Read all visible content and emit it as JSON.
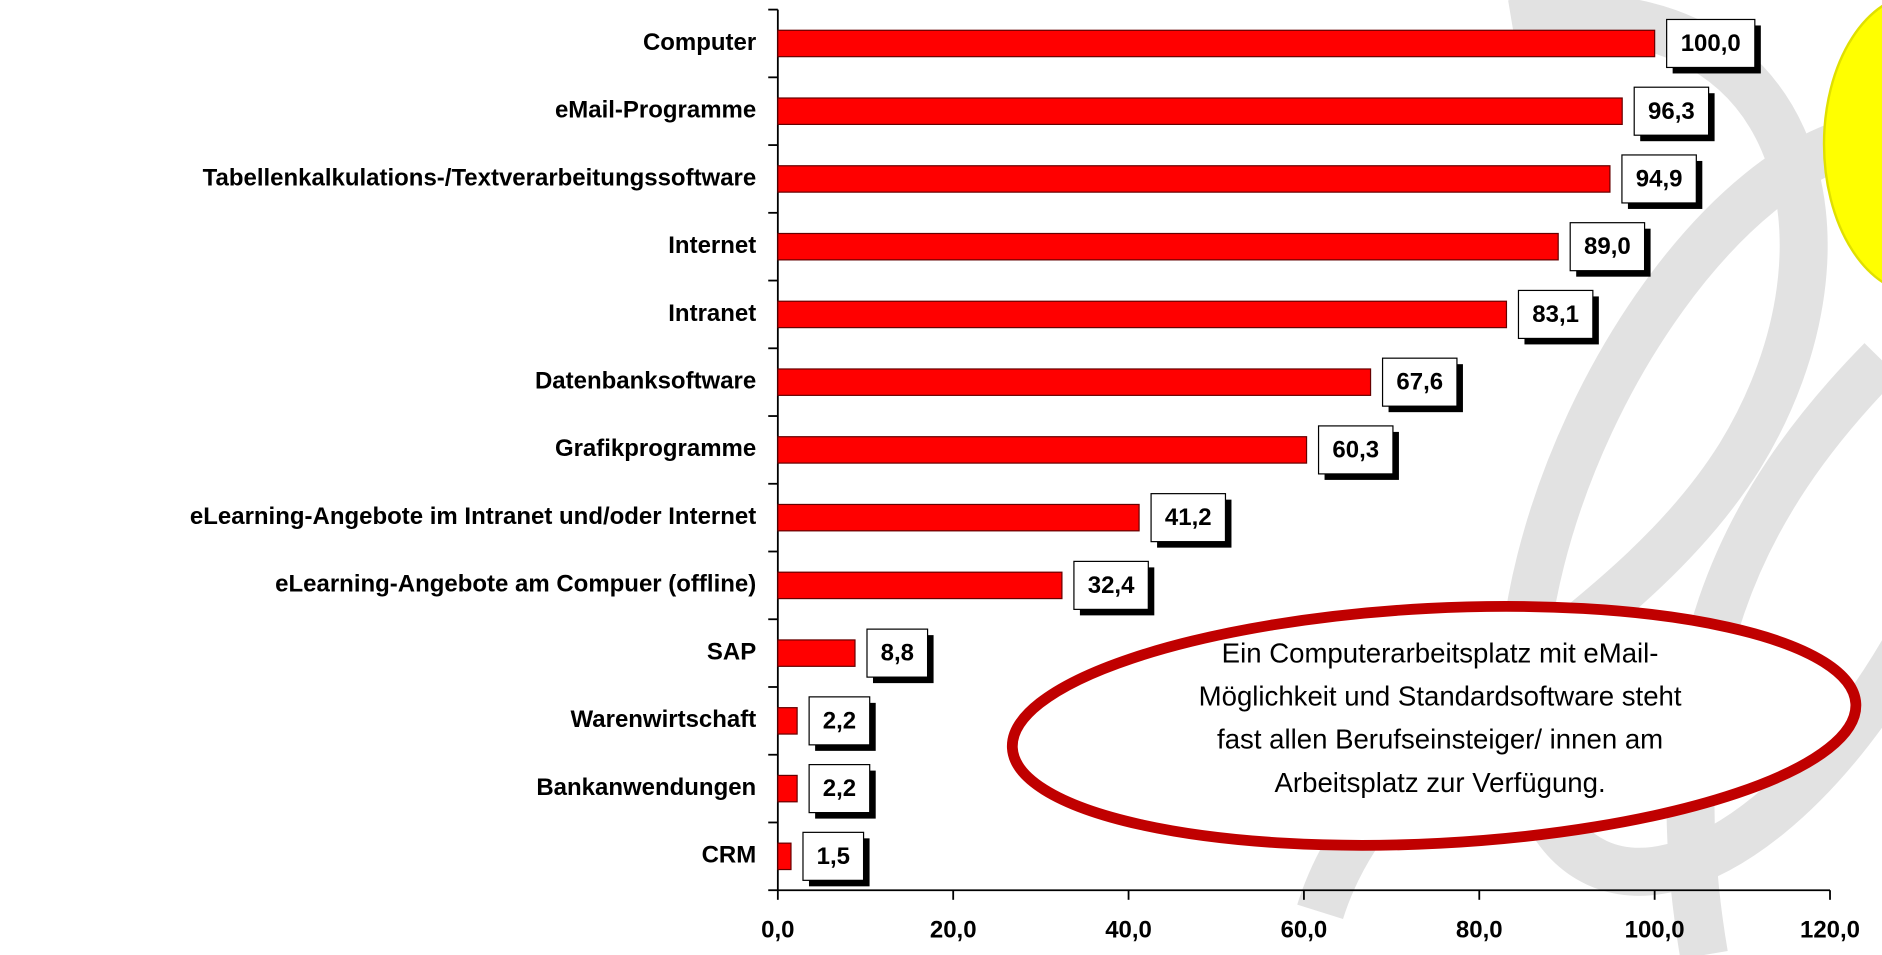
{
  "chart_data": {
    "type": "barh",
    "categories": [
      "Computer",
      "eMail-Programme",
      "Tabellenkalkulations-/Textverarbeitungssoftware",
      "Internet",
      "Intranet",
      "Datenbanksoftware",
      "Grafikprogramme",
      "eLearning-Angebote im Intranet und/oder Internet",
      "eLearning-Angebote am Compuer (offline)",
      "SAP",
      "Warenwirtschaft",
      "Bankanwendungen",
      "CRM"
    ],
    "values": [
      100.0,
      96.3,
      94.9,
      89.0,
      83.1,
      67.6,
      60.3,
      41.2,
      32.4,
      8.8,
      2.2,
      2.2,
      1.5
    ],
    "value_labels": [
      "100,0",
      "96,3",
      "94,9",
      "89,0",
      "83,1",
      "67,6",
      "60,3",
      "41,2",
      "32,4",
      "8,8",
      "2,2",
      "2,2",
      "1,5"
    ],
    "color": "#ff0000",
    "xlim": [
      0,
      120
    ],
    "xticks": [
      {
        "value": 0,
        "label": "0,0"
      },
      {
        "value": 20,
        "label": "20,0"
      },
      {
        "value": 40,
        "label": "40,0"
      },
      {
        "value": 60,
        "label": "60,0"
      },
      {
        "value": 80,
        "label": "80,0"
      },
      {
        "value": 100,
        "label": "100,0"
      },
      {
        "value": 120,
        "label": "120,0"
      }
    ],
    "annotation_lines": [
      "Ein Computerarbeitsplatz mit eMail-",
      "Möglichkeit und Standardsoftware steht",
      "fast allen Berufseinsteiger/ innen am",
      "Arbeitsplatz zur Verfügung."
    ]
  }
}
